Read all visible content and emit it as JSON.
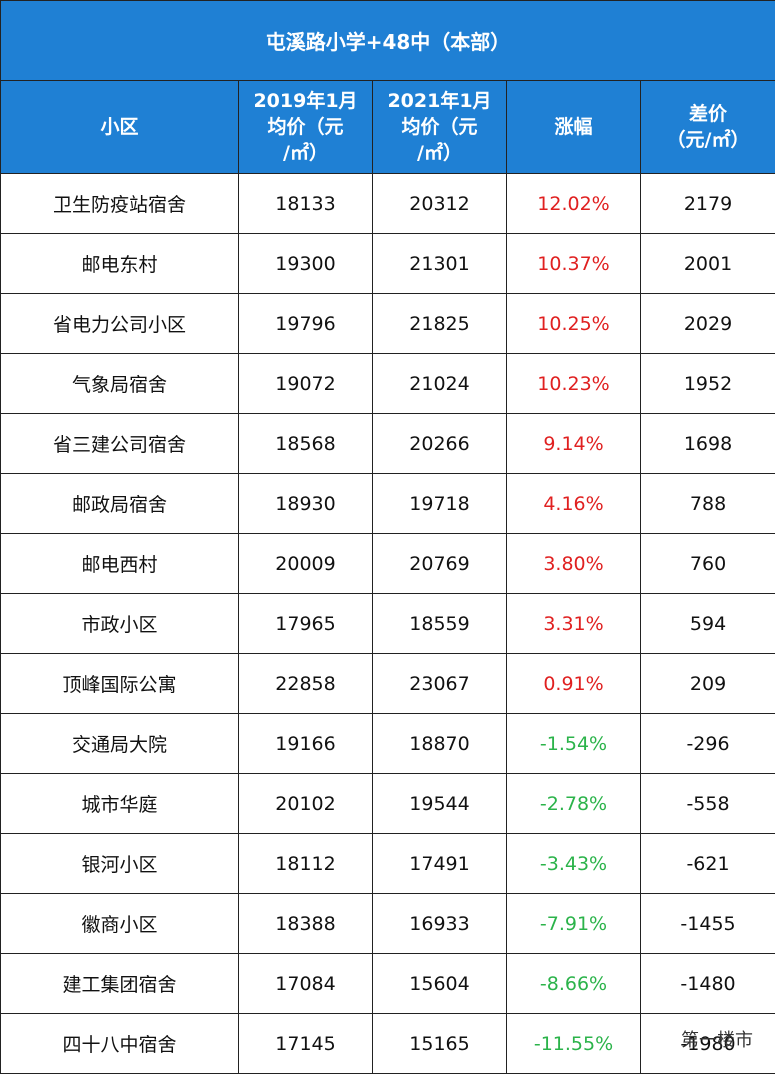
{
  "table": {
    "title": "屯溪路小学+48中（本部）",
    "headers": [
      [
        "小区"
      ],
      [
        "2019年1月",
        "均价（元",
        "/㎡）"
      ],
      [
        "2021年1月",
        "均价（元",
        "/㎡）"
      ],
      [
        "涨幅"
      ],
      [
        "差价",
        "（元/㎡）"
      ]
    ],
    "rows": [
      [
        "卫生防疫站宿舍",
        "18133",
        "20312",
        "12.02%",
        "2179"
      ],
      [
        "邮电东村",
        "19300",
        "21301",
        "10.37%",
        "2001"
      ],
      [
        "省电力公司小区",
        "19796",
        "21825",
        "10.25%",
        "2029"
      ],
      [
        "气象局宿舍",
        "19072",
        "21024",
        "10.23%",
        "1952"
      ],
      [
        "省三建公司宿舍",
        "18568",
        "20266",
        "9.14%",
        "1698"
      ],
      [
        "邮政局宿舍",
        "18930",
        "19718",
        "4.16%",
        "788"
      ],
      [
        "邮电西村",
        "20009",
        "20769",
        "3.80%",
        "760"
      ],
      [
        "市政小区",
        "17965",
        "18559",
        "3.31%",
        "594"
      ],
      [
        "顶峰国际公寓",
        "22858",
        "23067",
        "0.91%",
        "209"
      ],
      [
        "交通局大院",
        "19166",
        "18870",
        "-1.54%",
        "-296"
      ],
      [
        "城市华庭",
        "20102",
        "19544",
        "-2.78%",
        "-558"
      ],
      [
        "银河小区",
        "18112",
        "17491",
        "-3.43%",
        "-621"
      ],
      [
        "徽商小区",
        "18388",
        "16933",
        "-7.91%",
        "-1455"
      ],
      [
        "建工集团宿舍",
        "17084",
        "15604",
        "-8.66%",
        "-1480"
      ],
      [
        "四十八中宿舍",
        "17145",
        "15165",
        "-11.55%",
        "-1980"
      ]
    ]
  },
  "watermark": "第一楼市"
}
